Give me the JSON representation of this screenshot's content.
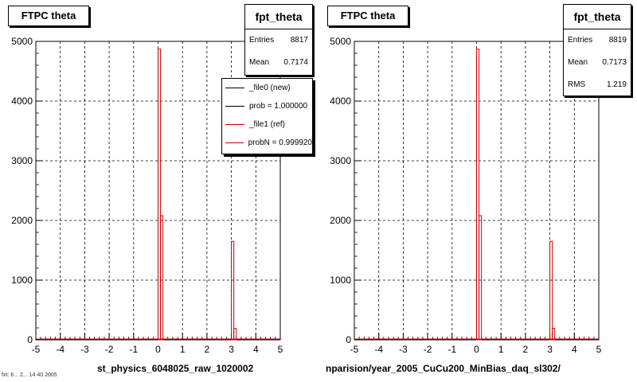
{
  "colors": {
    "reference": "#cc0000",
    "new": "#000000",
    "grid": "#000000"
  },
  "panels": [
    {
      "title": "FTPC theta",
      "stats": {
        "name": "fpt_theta",
        "rows": [
          {
            "label": "Entries",
            "value": "8817"
          },
          {
            "label": "Mean",
            "value": "0.7174"
          }
        ]
      },
      "legend": [
        {
          "label": "_file0 (new)",
          "color": "#000000"
        },
        {
          "label": "prob = 1.000000",
          "color": "#000000"
        },
        {
          "label": "_file1 (ref)",
          "color": "#cc0000"
        },
        {
          "label": "probN = 0.999920",
          "color": "#cc0000"
        }
      ],
      "xlabel": "st_physics_6048025_raw_1020002"
    },
    {
      "title": "FTPC theta",
      "stats": {
        "name": "fpt_theta",
        "rows": [
          {
            "label": "Entries",
            "value": "8819"
          },
          {
            "label": "Mean",
            "value": "0.7173"
          },
          {
            "label": "RMS",
            "value": "1.219"
          }
        ]
      },
      "xlabel": "nparision/year_2005_CuCu200_MinBias_daq_sl302/"
    }
  ],
  "footer_text": "fxt: 6... 2... 14 40 2005",
  "chart_data": [
    {
      "type": "bar",
      "title": "FTPC theta",
      "xlabel": "st_physics_6048025_raw_1020002",
      "xlim": [
        -5,
        5
      ],
      "ylim": [
        0,
        5000
      ],
      "xticks": [
        -5,
        -4,
        -3,
        -2,
        -1,
        0,
        1,
        2,
        3,
        4,
        5
      ],
      "yticks": [
        0,
        1000,
        2000,
        3000,
        4000,
        5000
      ],
      "grid": true,
      "legend_position": "top-right",
      "series": [
        {
          "name": "_file1 (ref)",
          "color": "#cc0000",
          "x": [
            0.0,
            0.1,
            3.0,
            3.1
          ],
          "values": [
            4870,
            2080,
            1650,
            190
          ]
        }
      ]
    },
    {
      "type": "bar",
      "title": "FTPC theta",
      "xlabel": "nparision/year_2005_CuCu200_MinBias_daq_sl302/",
      "xlim": [
        -5,
        5
      ],
      "ylim": [
        0,
        5000
      ],
      "xticks": [
        -5,
        -4,
        -3,
        -2,
        -1,
        0,
        1,
        2,
        3,
        4,
        5
      ],
      "yticks": [
        0,
        1000,
        2000,
        3000,
        4000,
        5000
      ],
      "grid": true,
      "series": [
        {
          "name": "_file1 (ref)",
          "color": "#cc0000",
          "x": [
            0.0,
            0.1,
            3.0,
            3.1
          ],
          "values": [
            4870,
            2080,
            1650,
            190
          ]
        }
      ]
    }
  ]
}
